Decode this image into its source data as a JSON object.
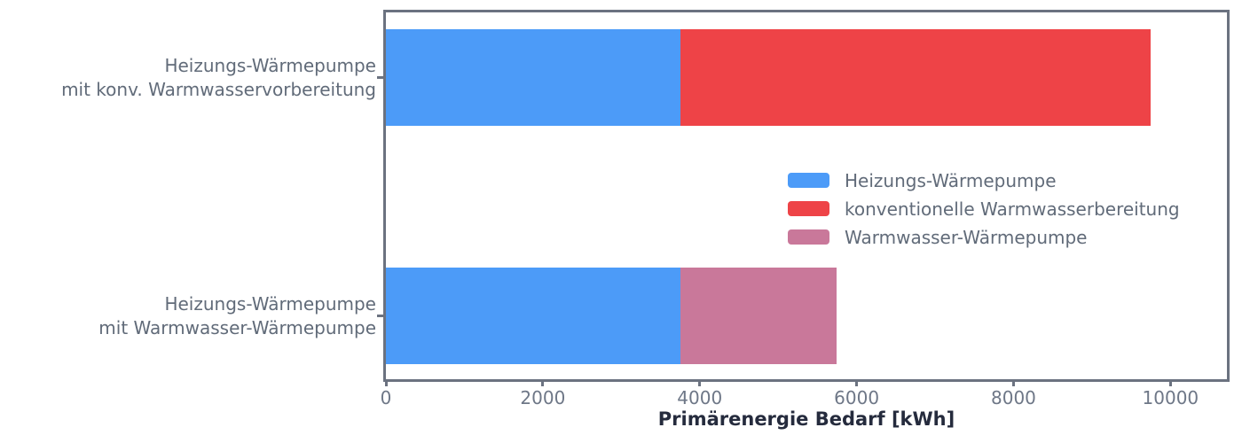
{
  "chart_data": {
    "type": "bar",
    "orientation": "horizontal",
    "stacked": true,
    "title": "",
    "xlabel": "Primärenergie Bedarf [kWh]",
    "ylabel": "",
    "categories": [
      {
        "label_lines": [
          "Heizungs-Wärmepumpe",
          "mit konv. Warmwasservorbereitung"
        ]
      },
      {
        "label_lines": [
          "Heizungs-Wärmepumpe",
          "mit Warmwasser-Wärmepumpe"
        ]
      }
    ],
    "series": [
      {
        "name": "Heizungs-Wärmepumpe",
        "color": "#4C9BF8",
        "values": [
          3750,
          3750
        ]
      },
      {
        "name": "konventionelle Warmwasserbereitung",
        "color": "#EE4347",
        "values": [
          6000,
          0
        ]
      },
      {
        "name": "Warmwasser-Wärmepumpe",
        "color": "#C9789A",
        "values": [
          0,
          2000
        ]
      }
    ],
    "totals": [
      9750,
      5750
    ],
    "xticks": [
      0,
      2000,
      4000,
      6000,
      8000,
      10000
    ],
    "xlim": [
      0,
      10720
    ],
    "grid": false,
    "legend": {
      "position": "inside-upper-left",
      "items": [
        "Heizungs-Wärmepumpe",
        "konventionelle Warmwasserbereitung",
        "Warmwasser-Wärmepumpe"
      ]
    }
  },
  "colors": {
    "spine": "#6B7280",
    "tick_label": "#6E7787",
    "category_label": "#616B79",
    "legend_label": "#616B79",
    "axis_label": "#252B3D",
    "background": "#FFFFFF"
  }
}
